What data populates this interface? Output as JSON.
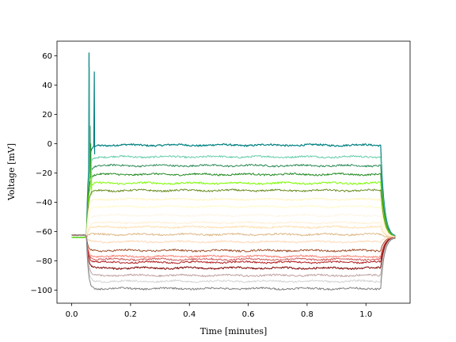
{
  "chart_data": {
    "type": "line",
    "xlabel": "Time [minutes]",
    "ylabel": "Voltage [mV]",
    "xlim": [
      -0.05,
      1.15
    ],
    "ylim": [
      -109,
      70
    ],
    "xticks": [
      0.0,
      0.2,
      0.4,
      0.6,
      0.8,
      1.0
    ],
    "xtick_labels": [
      "0.0",
      "0.2",
      "0.4",
      "0.6",
      "0.8",
      "1.0"
    ],
    "yticks": [
      -100,
      -80,
      -60,
      -40,
      -20,
      0,
      20,
      40,
      60
    ],
    "ytick_labels": [
      "−100",
      "−80",
      "−60",
      "−40",
      "−20",
      "0",
      "20",
      "40",
      "60"
    ],
    "grid": false,
    "legend": "none",
    "stimulus_window": [
      0.05,
      1.05
    ],
    "resting_potential": -64,
    "series": [
      {
        "color": "#008080",
        "steady": -1,
        "peak": 62,
        "spike_time": 0.058,
        "spike2_time": 0.076,
        "spike2_peak": 49
      },
      {
        "color": "#66cdaa",
        "steady": -9,
        "peak": 52,
        "spike_time": 0.06
      },
      {
        "color": "#2e8b57",
        "steady": -15,
        "peak": 12,
        "spike_time": 0.062
      },
      {
        "color": "#228b22",
        "steady": -21,
        "peak": 0,
        "spike_time": 0.064
      },
      {
        "color": "#7cfc00",
        "steady": -27,
        "peak": -10,
        "spike_time": 0.066
      },
      {
        "color": "#6b8e23",
        "steady": -32
      },
      {
        "color": "#fff5c0",
        "steady": -38
      },
      {
        "color": "#fffacd",
        "steady": -43
      },
      {
        "color": "#fdf5e6",
        "steady": -49
      },
      {
        "color": "#ffefd5",
        "steady": -54
      },
      {
        "color": "#ffdead",
        "steady": -57
      },
      {
        "color": "#deb887",
        "steady": -62
      },
      {
        "color": "#ffdab9",
        "steady": -67
      },
      {
        "color": "#a0522d",
        "steady": -73
      },
      {
        "color": "#fa8072",
        "steady": -77
      },
      {
        "color": "#cd5c5c",
        "steady": -79
      },
      {
        "color": "#b22222",
        "steady": -81
      },
      {
        "color": "#800000",
        "steady": -85
      },
      {
        "color": "#c0a0a0",
        "steady": -90
      },
      {
        "color": "#d3d3d3",
        "steady": -94
      },
      {
        "color": "#808080",
        "steady": -99
      }
    ]
  }
}
